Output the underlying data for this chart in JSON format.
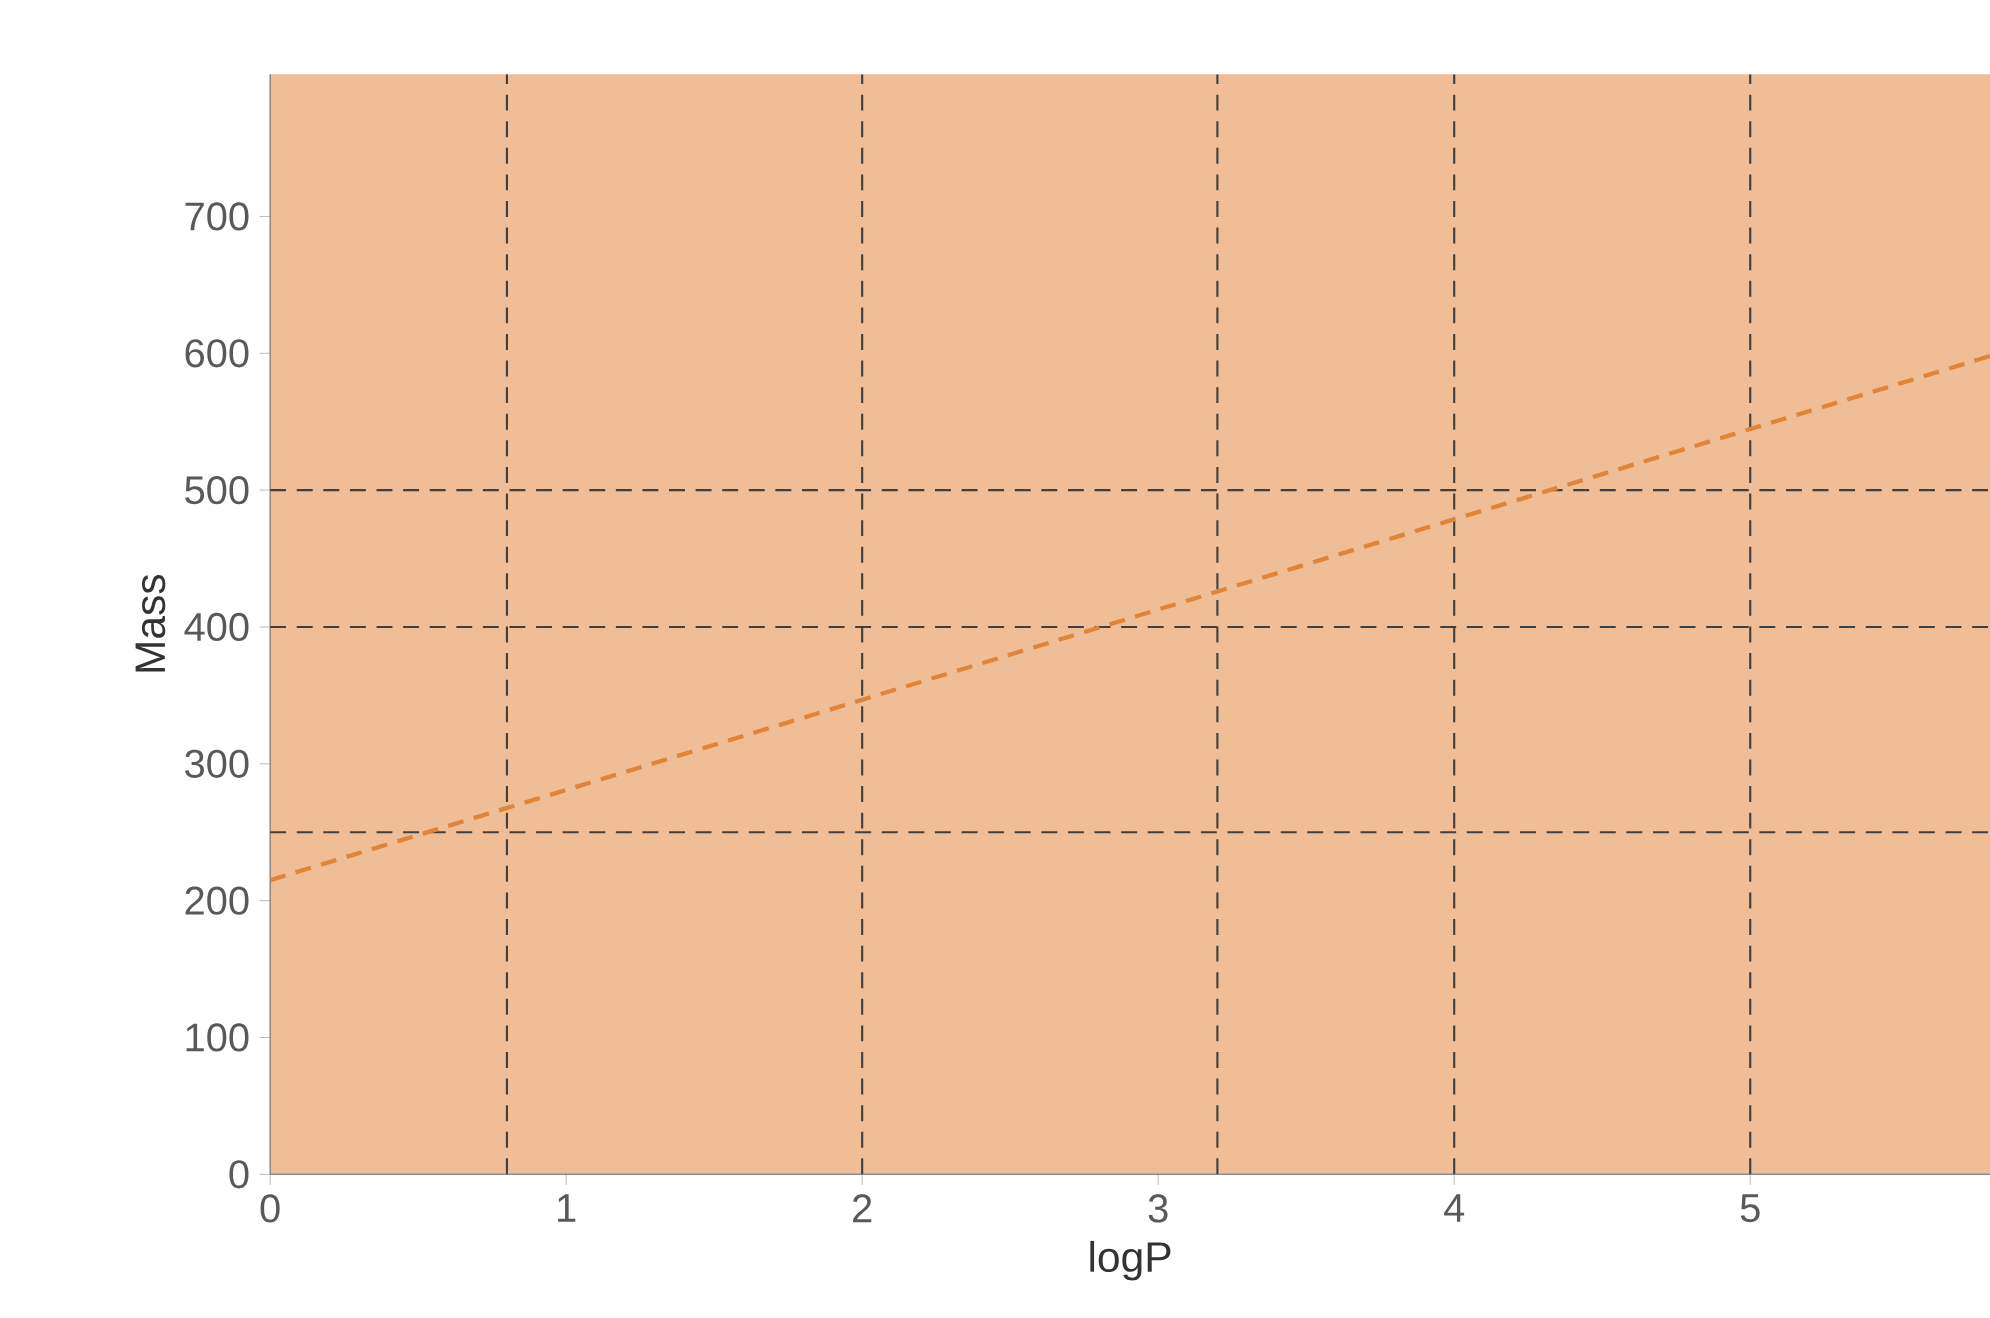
{
  "chart_data": {
    "type": "line",
    "xlabel": "logP",
    "ylabel": "Mass",
    "xlim": [
      0,
      5.81
    ],
    "ylim": [
      0,
      804
    ],
    "xticks": [
      0,
      1,
      2,
      3,
      4,
      5
    ],
    "yticks": [
      0,
      100,
      200,
      300,
      400,
      500,
      600,
      700
    ],
    "series": [
      {
        "x": [
          0,
          5.81
        ],
        "values": [
          215,
          598
        ],
        "color": "#e0843a",
        "line_style": "dashed"
      }
    ],
    "ref_lines": [
      {
        "axis": "x",
        "value": 0.8
      },
      {
        "axis": "x",
        "value": 2
      },
      {
        "axis": "x",
        "value": 3.2
      },
      {
        "axis": "x",
        "value": 4
      },
      {
        "axis": "x",
        "value": 5
      },
      {
        "axis": "y",
        "value": 250
      },
      {
        "axis": "y",
        "value": 400
      },
      {
        "axis": "y",
        "value": 500
      }
    ],
    "grid": false,
    "marker": "none"
  }
}
